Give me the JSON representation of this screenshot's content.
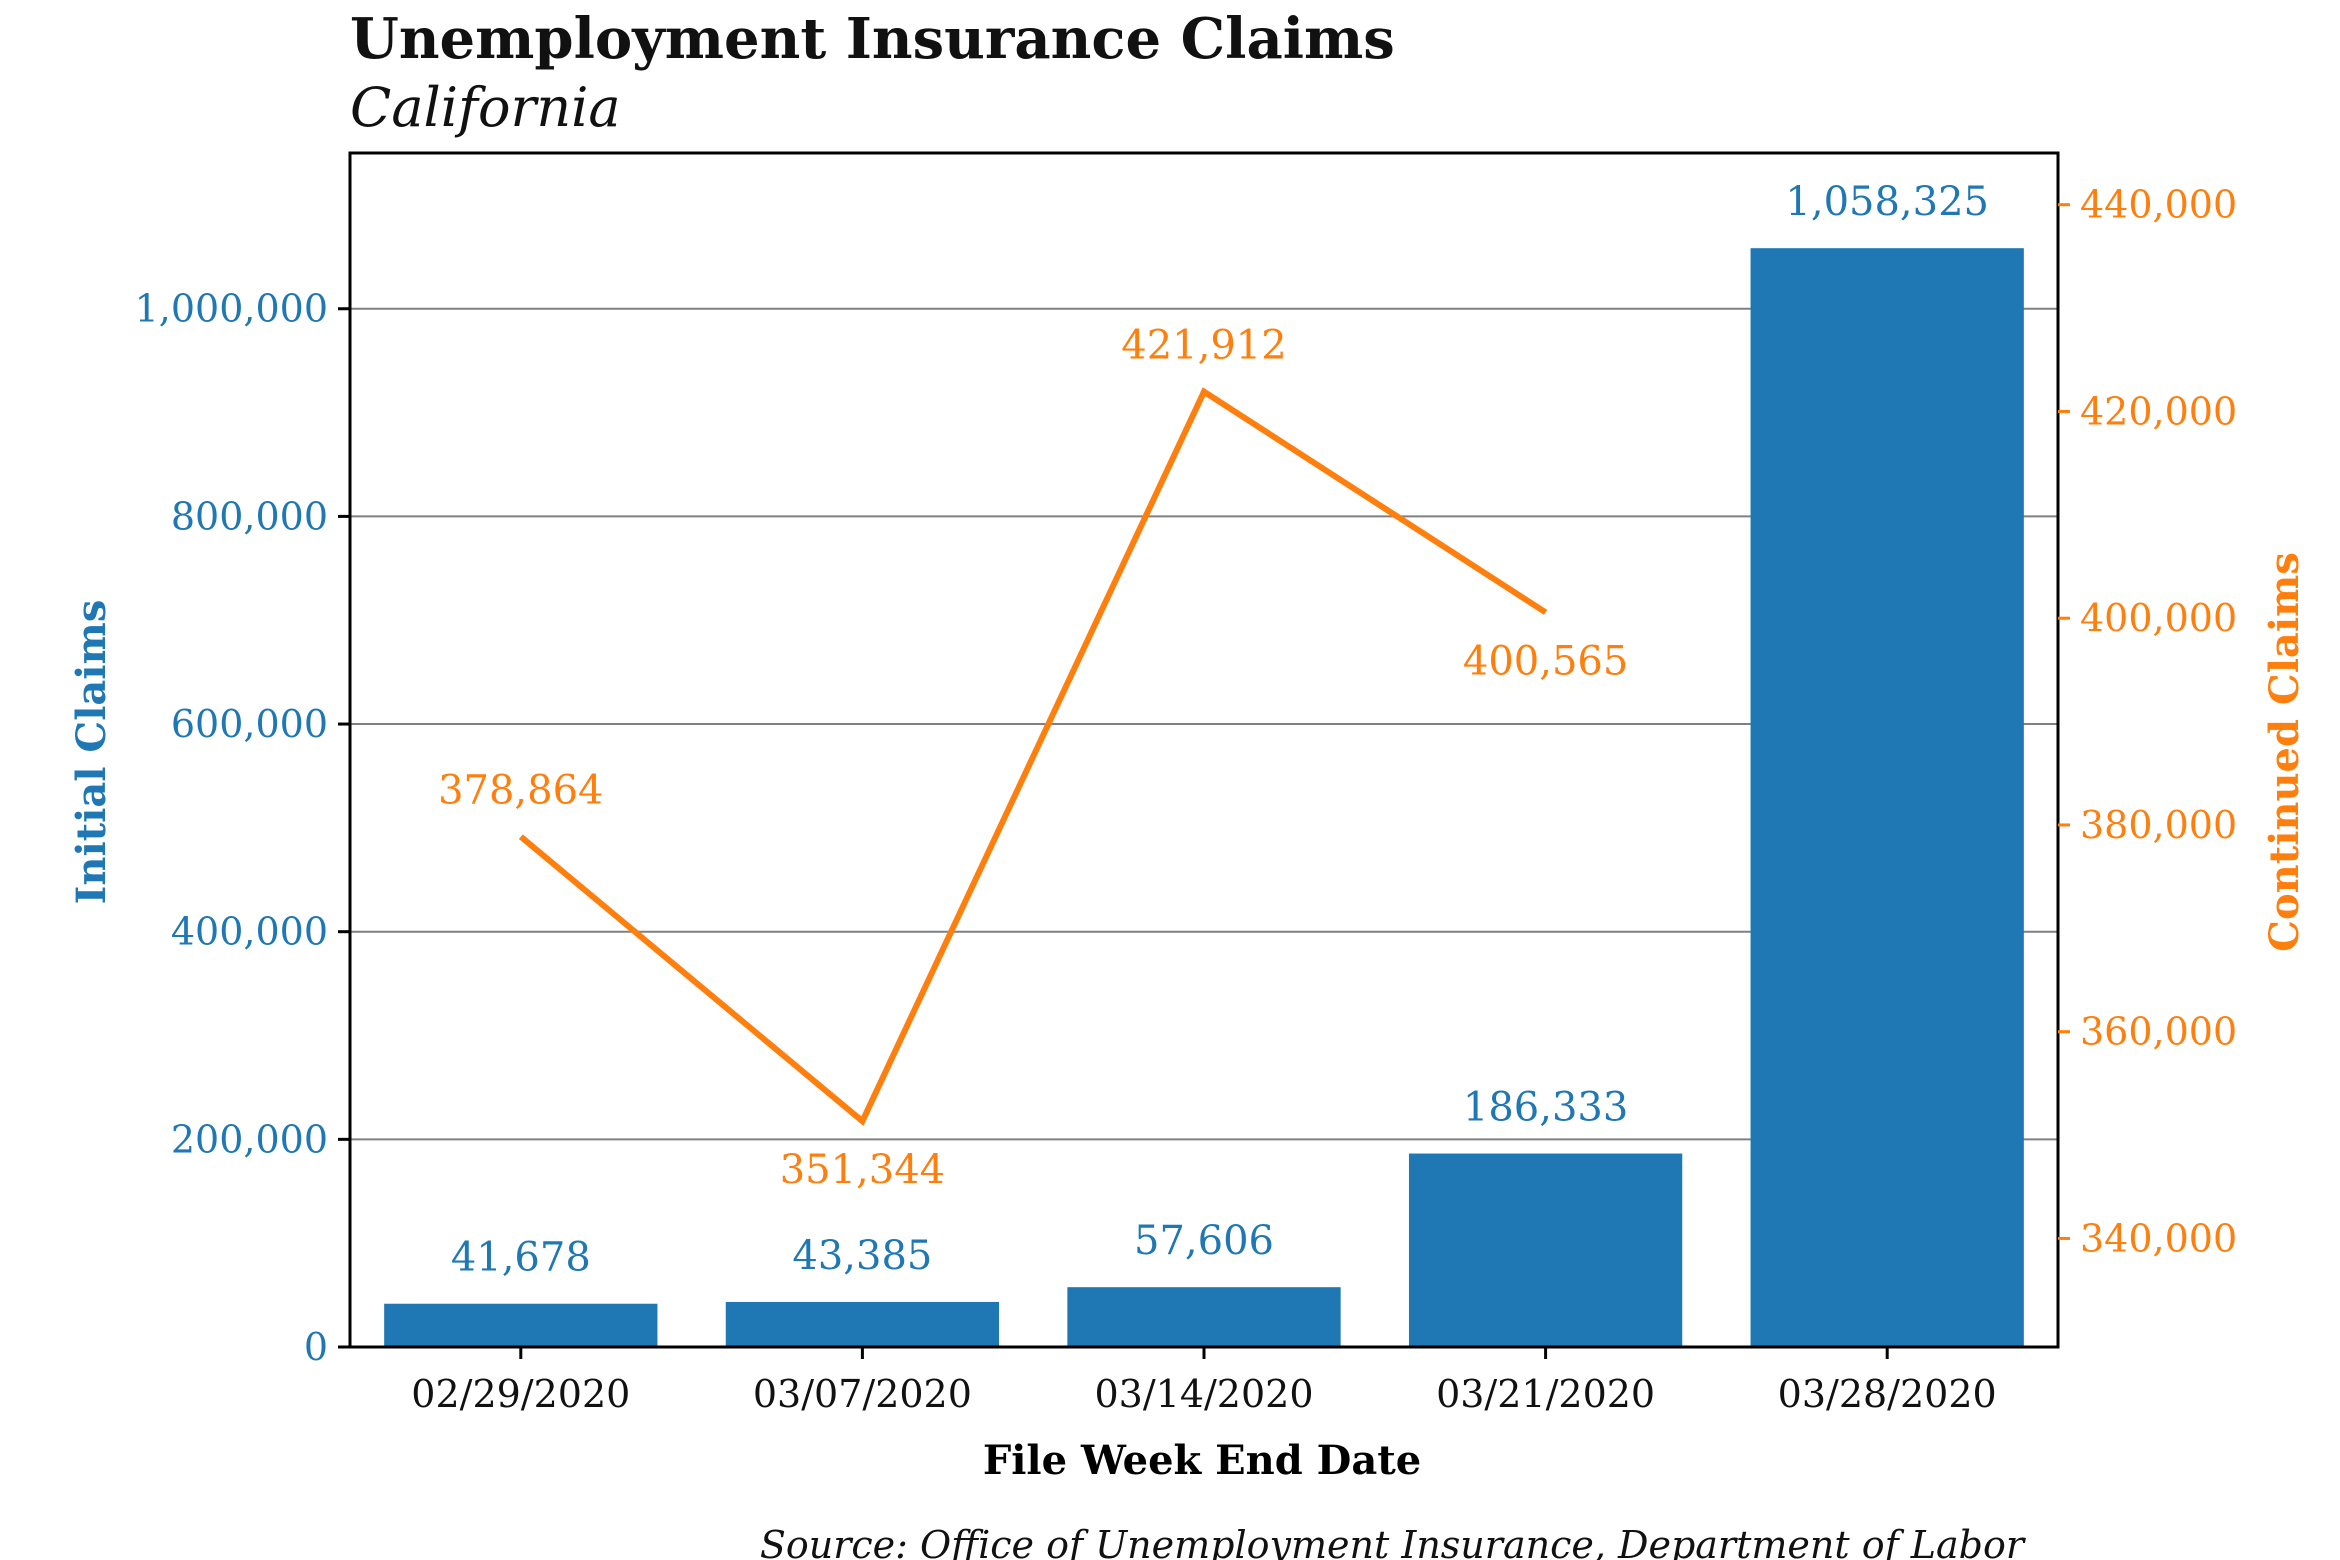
{
  "chart_data": {
    "type": "bar",
    "title": "Unemployment Insurance Claims",
    "subtitle": "California",
    "xlabel": "File Week End Date",
    "categories": [
      "02/29/2020",
      "03/07/2020",
      "03/14/2020",
      "03/21/2020",
      "03/28/2020"
    ],
    "series": [
      {
        "name": "Initial Claims",
        "type": "bar",
        "axis": "left",
        "values": [
          41678,
          43385,
          57606,
          186333,
          1058325
        ],
        "labels": [
          "41,678",
          "43,385",
          "57,606",
          "186,333",
          "1,058,325"
        ]
      },
      {
        "name": "Continued Claims",
        "type": "line",
        "axis": "right",
        "values": [
          378864,
          351344,
          421912,
          400565,
          null
        ],
        "labels": [
          "378,864",
          "351,344",
          "421,912",
          "400,565",
          ""
        ]
      }
    ],
    "y_left": {
      "label": "Initial Claims",
      "lim": [
        0,
        1150000
      ],
      "ticks": [
        0,
        200000,
        400000,
        600000,
        800000,
        1000000
      ],
      "tick_labels": [
        "0",
        "200,000",
        "400,000",
        "600,000",
        "800,000",
        "1,000,000"
      ]
    },
    "y_right": {
      "label": "Continued Claims",
      "lim": [
        329500,
        445000
      ],
      "ticks": [
        340000,
        360000,
        380000,
        400000,
        420000,
        440000
      ],
      "tick_labels": [
        "340,000",
        "360,000",
        "380,000",
        "400,000",
        "420,000",
        "440,000"
      ]
    },
    "grid": "horizontal",
    "legend": "none",
    "source": "Source: Office of Unemployment Insurance, Department of Labor",
    "colors": {
      "bar": "#1f77b4",
      "line": "#ff7f0e",
      "grid": "#808080",
      "axis": "#000000",
      "text": "#111111"
    }
  }
}
